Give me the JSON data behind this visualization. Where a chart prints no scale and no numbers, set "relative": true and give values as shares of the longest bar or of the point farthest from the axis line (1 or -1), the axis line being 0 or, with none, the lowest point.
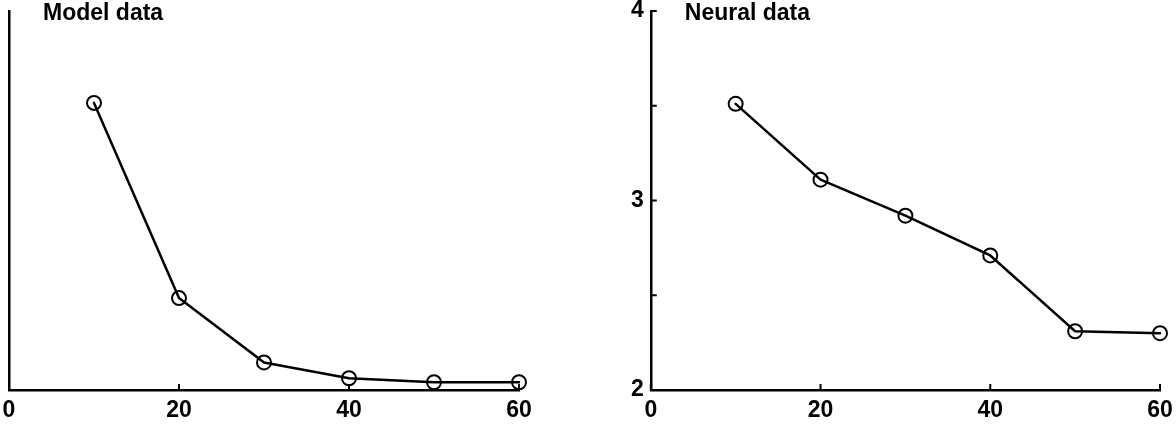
{
  "chart_data": [
    {
      "type": "line",
      "title": "Model data",
      "relative": true,
      "x": [
        10,
        20,
        30,
        40,
        50,
        60
      ],
      "values": [
        1,
        0.32,
        0.096,
        0.041,
        0.027,
        0.027
      ],
      "color": "#000000",
      "marker": "circle",
      "line_style": "solid",
      "xlim": [
        0,
        60
      ],
      "xticks": [
        0,
        20,
        40,
        60
      ]
    },
    {
      "type": "line",
      "title": "Neural data",
      "x": [
        10,
        20,
        30,
        40,
        50,
        60
      ],
      "values": [
        3.51,
        3.11,
        2.92,
        2.71,
        2.31,
        2.3
      ],
      "color": "#000000",
      "marker": "circle",
      "line_style": "solid",
      "xlim": [
        0,
        60
      ],
      "xticks": [
        0,
        20,
        40,
        60
      ],
      "ylim": [
        2,
        4
      ],
      "yticks": [
        2,
        {
          "value": 2.5,
          "label": null
        },
        3,
        {
          "value": 3.5,
          "label": null
        },
        4
      ]
    }
  ]
}
